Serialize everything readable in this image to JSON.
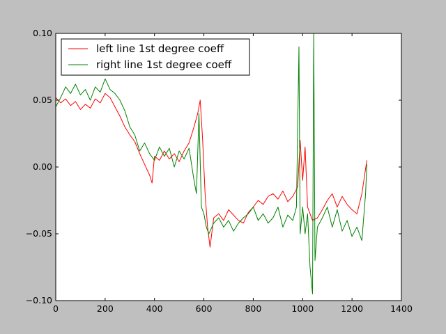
{
  "chart_data": {
    "type": "line",
    "title": "",
    "xlabel": "",
    "ylabel": "",
    "xlim": [
      0,
      1400
    ],
    "ylim": [
      -0.1,
      0.1
    ],
    "x_ticks": [
      0,
      200,
      400,
      600,
      800,
      1000,
      1200,
      1400
    ],
    "x_tick_labels": [
      "0",
      "200",
      "400",
      "600",
      "800",
      "1000",
      "1200",
      "1400"
    ],
    "y_ticks": [
      -0.1,
      -0.05,
      0.0,
      0.05,
      0.1
    ],
    "y_tick_labels": [
      "−0.10",
      "−0.05",
      "0.00",
      "0.05",
      "0.10"
    ],
    "grid": false,
    "legend_position": "top-left",
    "background": "#bfbfbf",
    "plot_background": "#ffffff",
    "series": [
      {
        "name": "left line 1st degree coeff",
        "color": "#ff0000",
        "points": [
          [
            0,
            0.052
          ],
          [
            20,
            0.048
          ],
          [
            40,
            0.051
          ],
          [
            60,
            0.046
          ],
          [
            80,
            0.049
          ],
          [
            100,
            0.043
          ],
          [
            120,
            0.047
          ],
          [
            140,
            0.044
          ],
          [
            160,
            0.051
          ],
          [
            180,
            0.048
          ],
          [
            200,
            0.055
          ],
          [
            220,
            0.052
          ],
          [
            240,
            0.045
          ],
          [
            260,
            0.038
          ],
          [
            280,
            0.03
          ],
          [
            300,
            0.024
          ],
          [
            320,
            0.019
          ],
          [
            340,
            0.01
          ],
          [
            360,
            0.002
          ],
          [
            380,
            -0.006
          ],
          [
            390,
            -0.012
          ],
          [
            400,
            0.008
          ],
          [
            420,
            0.005
          ],
          [
            440,
            0.012
          ],
          [
            460,
            0.006
          ],
          [
            480,
            0.01
          ],
          [
            500,
            0.004
          ],
          [
            520,
            0.012
          ],
          [
            540,
            0.018
          ],
          [
            560,
            0.03
          ],
          [
            575,
            0.04
          ],
          [
            585,
            0.05
          ],
          [
            595,
            0.02
          ],
          [
            605,
            -0.02
          ],
          [
            615,
            -0.045
          ],
          [
            625,
            -0.06
          ],
          [
            640,
            -0.038
          ],
          [
            660,
            -0.035
          ],
          [
            680,
            -0.04
          ],
          [
            700,
            -0.032
          ],
          [
            720,
            -0.036
          ],
          [
            740,
            -0.04
          ],
          [
            760,
            -0.042
          ],
          [
            780,
            -0.034
          ],
          [
            800,
            -0.03
          ],
          [
            820,
            -0.025
          ],
          [
            840,
            -0.028
          ],
          [
            860,
            -0.022
          ],
          [
            880,
            -0.02
          ],
          [
            900,
            -0.024
          ],
          [
            920,
            -0.018
          ],
          [
            940,
            -0.026
          ],
          [
            960,
            -0.022
          ],
          [
            980,
            -0.015
          ],
          [
            990,
            0.02
          ],
          [
            1000,
            -0.01
          ],
          [
            1010,
            0.015
          ],
          [
            1020,
            -0.03
          ],
          [
            1030,
            -0.035
          ],
          [
            1040,
            -0.04
          ],
          [
            1060,
            -0.038
          ],
          [
            1080,
            -0.032
          ],
          [
            1100,
            -0.025
          ],
          [
            1120,
            -0.02
          ],
          [
            1140,
            -0.03
          ],
          [
            1160,
            -0.022
          ],
          [
            1180,
            -0.028
          ],
          [
            1200,
            -0.032
          ],
          [
            1220,
            -0.035
          ],
          [
            1240,
            -0.02
          ],
          [
            1260,
            0.005
          ]
        ]
      },
      {
        "name": "right line 1st degree coeff",
        "color": "#008000",
        "points": [
          [
            0,
            0.045
          ],
          [
            20,
            0.052
          ],
          [
            40,
            0.06
          ],
          [
            60,
            0.055
          ],
          [
            80,
            0.062
          ],
          [
            100,
            0.054
          ],
          [
            120,
            0.058
          ],
          [
            140,
            0.05
          ],
          [
            160,
            0.06
          ],
          [
            180,
            0.056
          ],
          [
            200,
            0.066
          ],
          [
            220,
            0.058
          ],
          [
            240,
            0.055
          ],
          [
            260,
            0.05
          ],
          [
            280,
            0.042
          ],
          [
            300,
            0.03
          ],
          [
            320,
            0.024
          ],
          [
            340,
            0.012
          ],
          [
            360,
            0.018
          ],
          [
            380,
            0.01
          ],
          [
            400,
            0.005
          ],
          [
            420,
            0.015
          ],
          [
            440,
            0.008
          ],
          [
            460,
            0.014
          ],
          [
            480,
            0.0
          ],
          [
            500,
            0.012
          ],
          [
            520,
            0.006
          ],
          [
            540,
            0.014
          ],
          [
            560,
            -0.01
          ],
          [
            570,
            -0.02
          ],
          [
            580,
            0.04
          ],
          [
            590,
            -0.03
          ],
          [
            600,
            -0.035
          ],
          [
            610,
            -0.045
          ],
          [
            620,
            -0.05
          ],
          [
            640,
            -0.042
          ],
          [
            660,
            -0.038
          ],
          [
            680,
            -0.045
          ],
          [
            700,
            -0.04
          ],
          [
            720,
            -0.048
          ],
          [
            740,
            -0.042
          ],
          [
            760,
            -0.038
          ],
          [
            780,
            -0.035
          ],
          [
            800,
            -0.03
          ],
          [
            820,
            -0.04
          ],
          [
            840,
            -0.035
          ],
          [
            860,
            -0.042
          ],
          [
            880,
            -0.038
          ],
          [
            900,
            -0.03
          ],
          [
            920,
            -0.045
          ],
          [
            940,
            -0.036
          ],
          [
            960,
            -0.04
          ],
          [
            975,
            -0.03
          ],
          [
            985,
            0.09
          ],
          [
            990,
            -0.05
          ],
          [
            1000,
            -0.03
          ],
          [
            1010,
            -0.05
          ],
          [
            1020,
            -0.035
          ],
          [
            1030,
            -0.075
          ],
          [
            1040,
            -0.095
          ],
          [
            1045,
            0.1
          ],
          [
            1050,
            -0.07
          ],
          [
            1060,
            -0.045
          ],
          [
            1080,
            -0.038
          ],
          [
            1100,
            -0.03
          ],
          [
            1120,
            -0.045
          ],
          [
            1140,
            -0.032
          ],
          [
            1160,
            -0.048
          ],
          [
            1180,
            -0.04
          ],
          [
            1200,
            -0.052
          ],
          [
            1220,
            -0.045
          ],
          [
            1240,
            -0.055
          ],
          [
            1255,
            -0.02
          ],
          [
            1260,
            0.002
          ]
        ]
      }
    ]
  }
}
